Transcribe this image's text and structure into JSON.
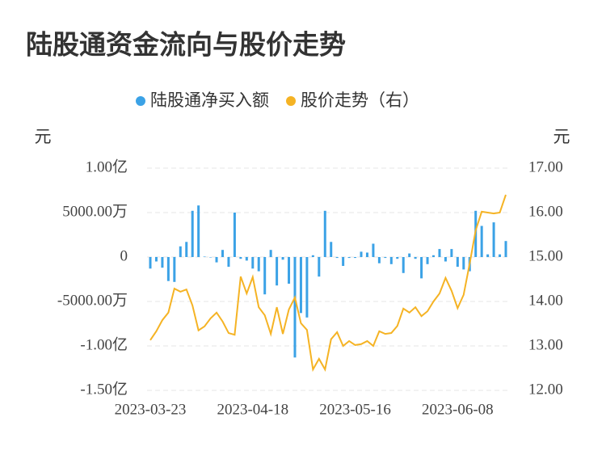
{
  "chart_data": {
    "type": "bar+line",
    "title": "陆股通资金流向与股价走势",
    "y_unit": "元",
    "y2_unit": "元",
    "categories": [
      "2023-03-23",
      null,
      null,
      null,
      null,
      null,
      null,
      null,
      null,
      null,
      null,
      null,
      null,
      null,
      null,
      null,
      null,
      "2023-04-18",
      null,
      null,
      null,
      null,
      null,
      null,
      null,
      null,
      null,
      null,
      null,
      null,
      null,
      null,
      null,
      null,
      "2023-05-16",
      null,
      null,
      null,
      null,
      null,
      null,
      null,
      null,
      null,
      null,
      null,
      null,
      null,
      null,
      null,
      null,
      "2023-06-08",
      null,
      null,
      null,
      null,
      null,
      null,
      null,
      null
    ],
    "series": [
      {
        "name": "陆股通净买入额",
        "color": "#3ba2e6",
        "kind": "bar",
        "values": [
          -13000000,
          -5000000,
          -12000000,
          -27000000,
          -28000000,
          12000000,
          17000000,
          52000000,
          58000000,
          500000,
          0,
          -6000000,
          8000000,
          -11000000,
          50000000,
          -2000000,
          -4000000,
          -13000000,
          -16000000,
          -42000000,
          8000000,
          -32000000,
          -3000000,
          -30000000,
          -113000000,
          -63000000,
          -68000000,
          2000000,
          -22000000,
          52000000,
          17000000,
          -1000000,
          -10000000,
          -1000000,
          -1000000,
          6000000,
          5000000,
          15000000,
          -7000000,
          -1000000,
          -8000000,
          -2000000,
          -18000000,
          4000000,
          -2000000,
          -24000000,
          -8000000,
          2000000,
          9000000,
          -5000000,
          9000000,
          -11000000,
          -14000000,
          -16000000,
          52000000,
          35000000,
          3000000,
          39000000,
          3000000,
          18000000
        ]
      },
      {
        "name": "股价走势（右）",
        "color": "#f5b324",
        "kind": "line",
        "axis": "y2",
        "values": [
          13.13,
          13.33,
          13.58,
          13.75,
          14.29,
          14.22,
          14.27,
          13.91,
          13.35,
          13.44,
          13.62,
          13.75,
          13.55,
          13.29,
          13.25,
          14.56,
          14.18,
          14.55,
          13.87,
          13.69,
          13.27,
          13.87,
          13.27,
          13.82,
          14.09,
          13.51,
          13.36,
          12.47,
          12.71,
          12.47,
          13.15,
          13.31,
          13.0,
          13.11,
          13.02,
          13.04,
          13.11,
          13.0,
          13.33,
          13.27,
          13.29,
          13.45,
          13.84,
          13.75,
          13.87,
          13.67,
          13.78,
          14.0,
          14.18,
          14.53,
          14.24,
          13.85,
          14.15,
          14.85,
          15.6,
          16.02,
          16.0,
          15.98,
          16.0,
          16.4
        ]
      }
    ],
    "ylim": [
      -150000000,
      100000000
    ],
    "yticks": [
      {
        "value": 100000000,
        "label": "1.00亿"
      },
      {
        "value": 50000000,
        "label": "5000.00万"
      },
      0,
      {
        "value": -50000000,
        "label": "-5000.00万"
      },
      {
        "value": -100000000,
        "label": "-1.00亿"
      },
      {
        "value": -150000000,
        "label": "-1.50亿"
      }
    ],
    "y2lim": [
      12,
      17
    ],
    "y2ticks": [
      {
        "value": 17,
        "label": "17.00"
      },
      {
        "value": 16,
        "label": "16.00"
      },
      {
        "value": 15,
        "label": "15.00"
      },
      {
        "value": 14,
        "label": "14.00"
      },
      {
        "value": 13,
        "label": "13.00"
      },
      {
        "value": 12,
        "label": "12.00"
      }
    ],
    "grid": true,
    "legend": "top"
  }
}
